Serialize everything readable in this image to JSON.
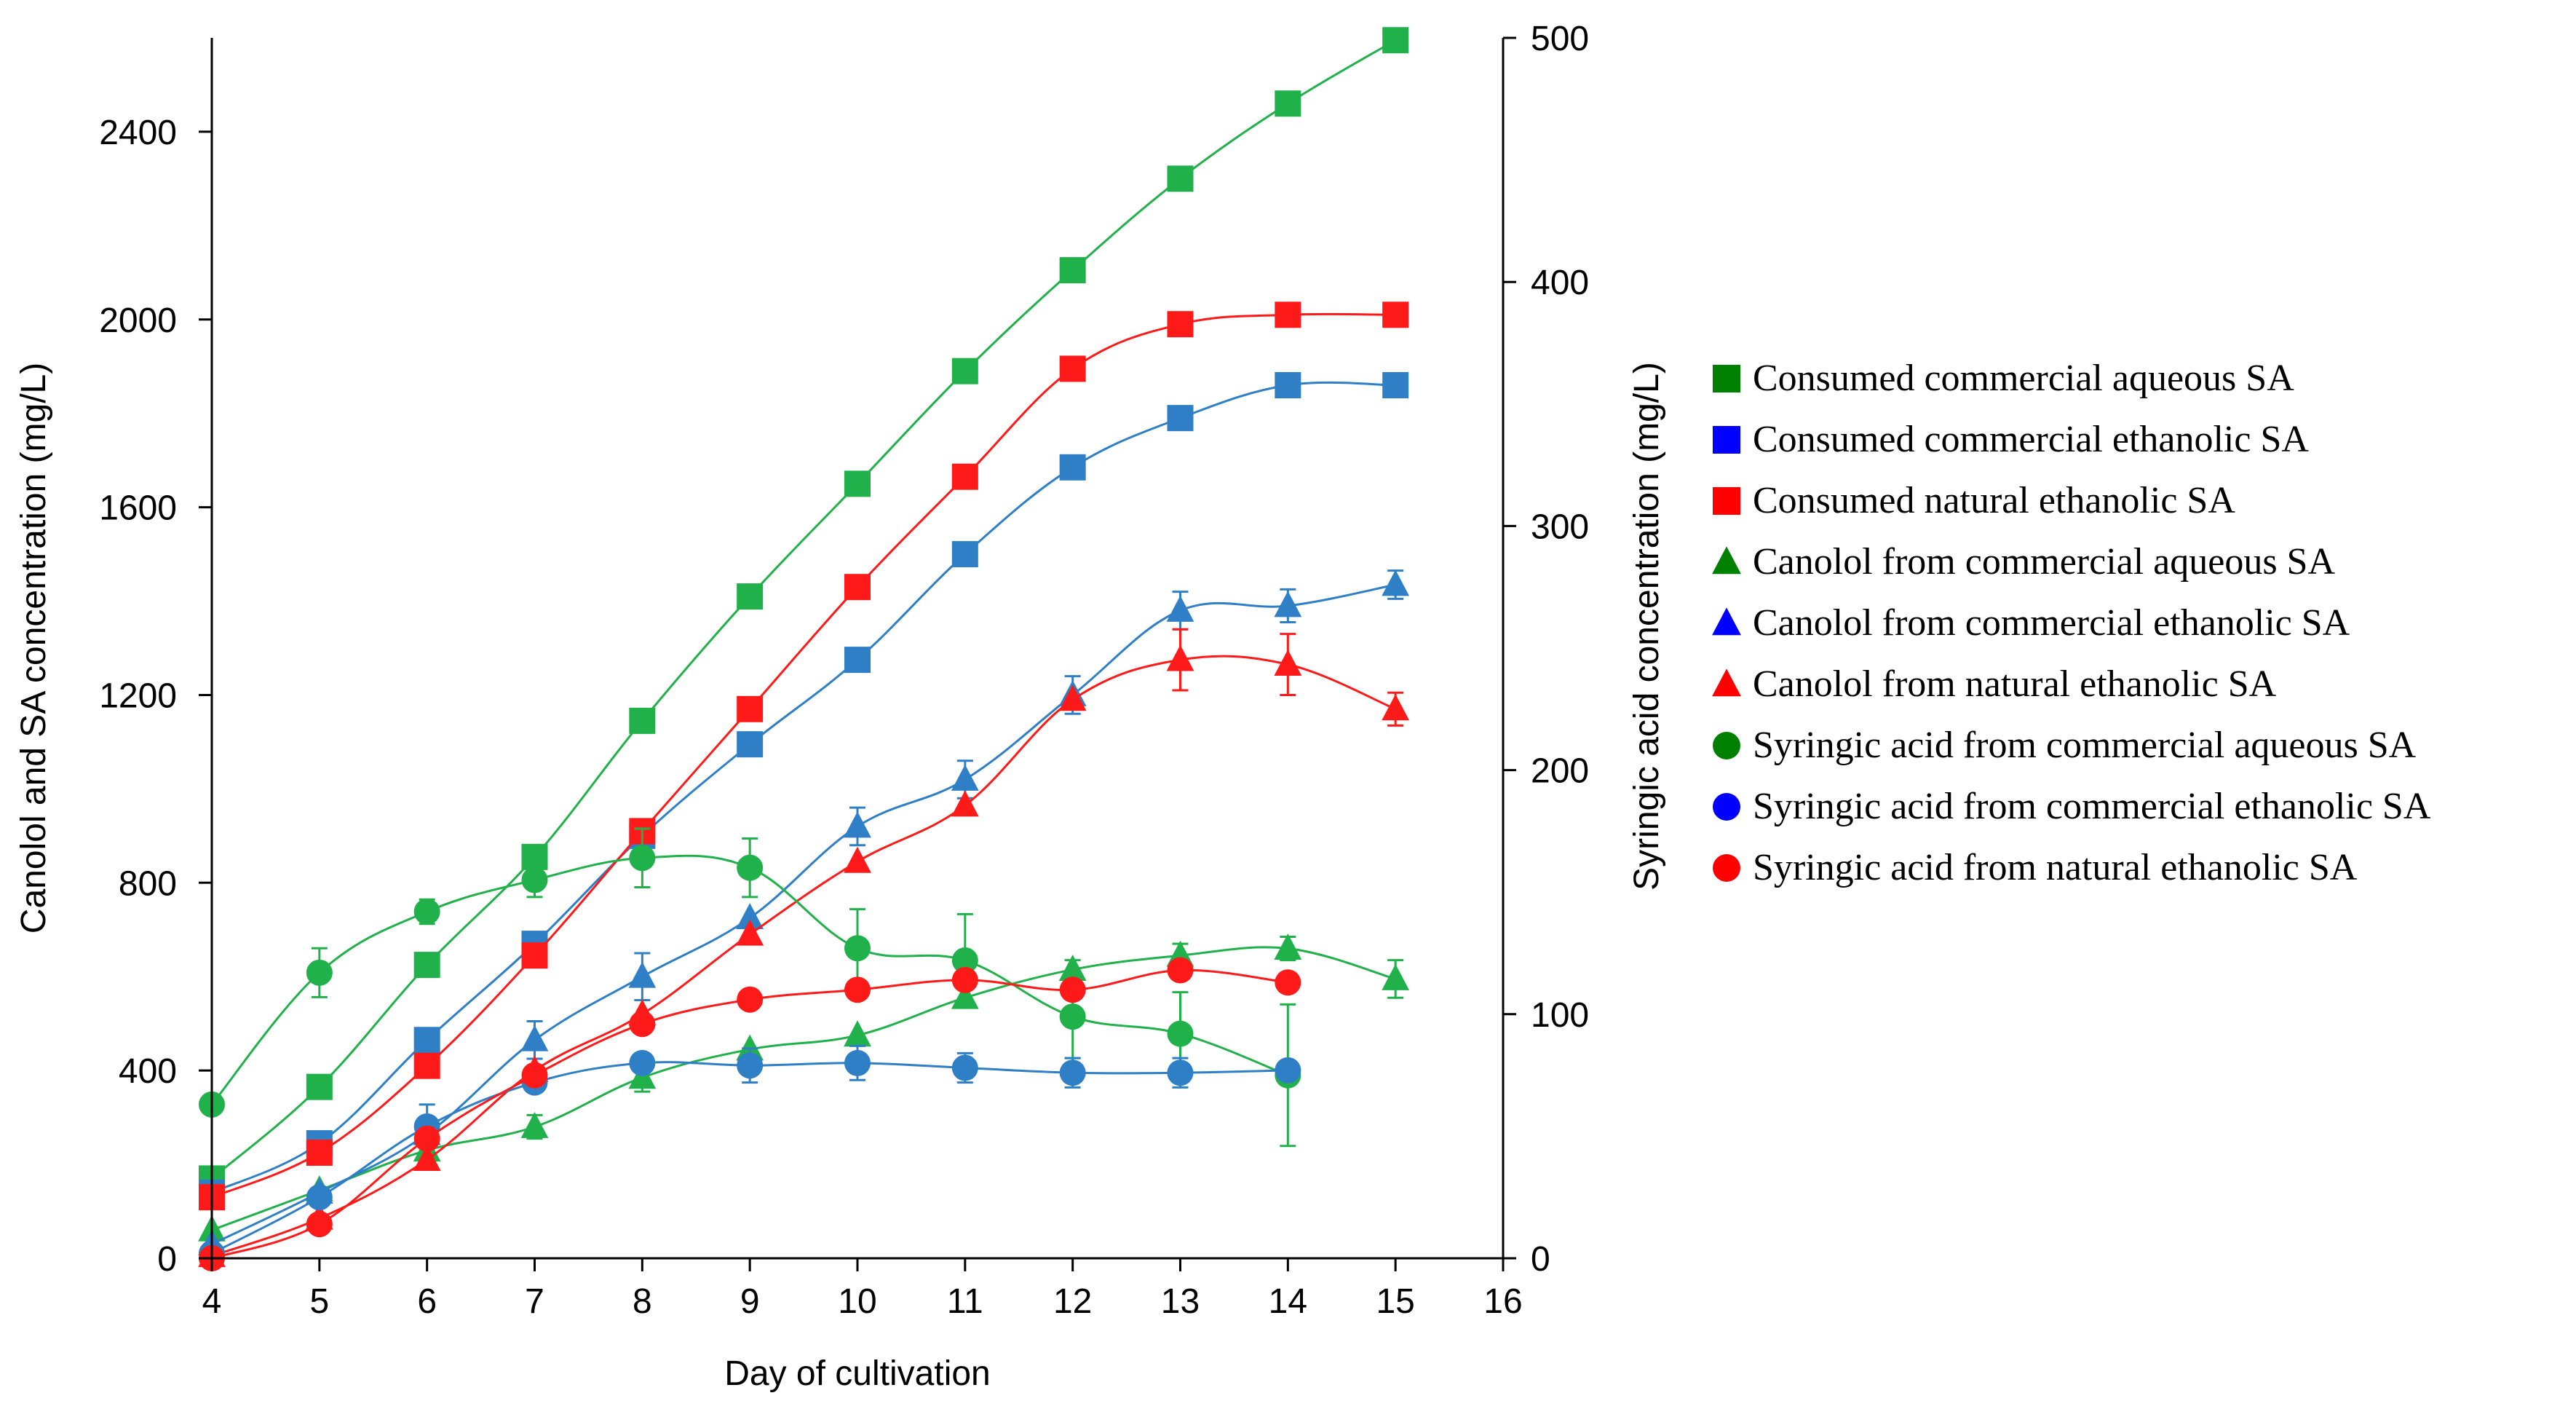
{
  "chart_data": {
    "type": "line",
    "title": "",
    "xlabel": "Day of cultivation",
    "ylabel_left": "Canolol and SA concentration  (mg/L)",
    "ylabel_right": "Syringic acid concentration  (mg/L)",
    "xlim": [
      4,
      16
    ],
    "ylim_left": [
      0,
      2600
    ],
    "ylim_right": [
      0,
      500
    ],
    "x_ticks": [
      "4",
      "5",
      "6",
      "7",
      "8",
      "9",
      "10",
      "11",
      "12",
      "13",
      "14",
      "15",
      "16"
    ],
    "y_left_ticks": [
      "0",
      "400",
      "800",
      "1200",
      "1600",
      "2000",
      "2400"
    ],
    "y_right_ticks": [
      "0",
      "100",
      "200",
      "300",
      "400",
      "500"
    ],
    "grid": false,
    "legend_position": "right",
    "colors": {
      "green": "#21b14b",
      "blue": "#2f7fc7",
      "red": "#ff1a1a",
      "legend_green": "#008000",
      "legend_blue": "#0000ff",
      "legend_red": "#ff0000"
    },
    "series": [
      {
        "name": "Consumed commercial aqueous SA",
        "marker": "square",
        "color": "green",
        "legend_color": "legend_green",
        "axis": "left",
        "x": [
          4,
          5,
          6,
          7,
          8,
          9,
          10,
          11,
          12,
          13,
          14,
          15
        ],
        "values": [
          170,
          365,
          625,
          855,
          1145,
          1410,
          1650,
          1890,
          2105,
          2300,
          2460,
          2595
        ],
        "errors": [
          0,
          0,
          0,
          0,
          0,
          0,
          0,
          0,
          0,
          0,
          0,
          0
        ]
      },
      {
        "name": "Consumed commercial ethanolic SA",
        "marker": "square",
        "color": "blue",
        "legend_color": "legend_blue",
        "axis": "left",
        "x": [
          4,
          5,
          6,
          7,
          8,
          9,
          10,
          11,
          12,
          13,
          14,
          15
        ],
        "values": [
          140,
          245,
          465,
          670,
          900,
          1095,
          1275,
          1500,
          1685,
          1790,
          1860,
          1860
        ],
        "errors": [
          0,
          0,
          0,
          0,
          0,
          0,
          0,
          0,
          0,
          0,
          0,
          0
        ]
      },
      {
        "name": "Consumed natural ethanolic SA",
        "marker": "square",
        "color": "red",
        "legend_color": "legend_red",
        "axis": "left",
        "x": [
          4,
          5,
          6,
          7,
          8,
          9,
          10,
          11,
          12,
          13,
          14,
          15
        ],
        "values": [
          130,
          225,
          410,
          645,
          910,
          1170,
          1430,
          1665,
          1895,
          1990,
          2010,
          2010
        ],
        "errors": [
          0,
          0,
          0,
          0,
          0,
          0,
          0,
          0,
          0,
          0,
          0,
          0
        ]
      },
      {
        "name": "Canolol from commercial aqueous SA",
        "marker": "triangle",
        "color": "green",
        "legend_color": "legend_green",
        "axis": "left",
        "x": [
          4,
          5,
          6,
          7,
          8,
          9,
          10,
          11,
          12,
          13,
          14,
          15
        ],
        "values": [
          60,
          145,
          230,
          280,
          385,
          445,
          475,
          555,
          615,
          645,
          660,
          595
        ],
        "errors": [
          0,
          0,
          0,
          25,
          30,
          0,
          0,
          0,
          20,
          25,
          25,
          40
        ]
      },
      {
        "name": "Canolol from commercial ethanolic SA",
        "marker": "triangle",
        "color": "blue",
        "legend_color": "legend_blue",
        "axis": "left",
        "x": [
          4,
          5,
          6,
          7,
          8,
          9,
          10,
          11,
          12,
          13,
          14,
          15
        ],
        "values": [
          30,
          140,
          265,
          465,
          600,
          725,
          920,
          1020,
          1200,
          1380,
          1390,
          1435
        ],
        "errors": [
          0,
          0,
          0,
          40,
          50,
          0,
          40,
          40,
          40,
          40,
          35,
          30
        ]
      },
      {
        "name": "Canolol from natural ethanolic SA",
        "marker": "triangle",
        "color": "red",
        "legend_color": "legend_red",
        "axis": "left",
        "x": [
          4,
          5,
          6,
          7,
          8,
          9,
          10,
          11,
          12,
          13,
          14,
          15
        ],
        "values": [
          5,
          85,
          210,
          400,
          520,
          690,
          845,
          965,
          1190,
          1275,
          1265,
          1170
        ],
        "errors": [
          0,
          0,
          0,
          0,
          0,
          0,
          0,
          0,
          0,
          65,
          65,
          35
        ]
      },
      {
        "name": "Syringic acid from commercial aqueous SA",
        "marker": "circle",
        "color": "green",
        "legend_color": "legend_green",
        "axis": "right",
        "x": [
          4,
          5,
          6,
          7,
          8,
          9,
          10,
          11,
          12,
          13,
          14
        ],
        "values": [
          63,
          117,
          142,
          155,
          164,
          160,
          127,
          122,
          99,
          92,
          75
        ],
        "errors": [
          0,
          10,
          5,
          7,
          12,
          12,
          16,
          19,
          17,
          17,
          29
        ]
      },
      {
        "name": "Syringic acid from commercial ethanolic SA",
        "marker": "circle",
        "color": "blue",
        "legend_color": "legend_blue",
        "axis": "right",
        "x": [
          4,
          5,
          6,
          7,
          8,
          9,
          10,
          11,
          12,
          13,
          14
        ],
        "values": [
          2,
          25,
          54,
          72,
          80,
          79,
          80,
          78,
          76,
          76,
          77
        ],
        "errors": [
          0,
          0,
          9,
          0,
          0,
          7,
          7,
          6,
          6,
          6,
          0
        ]
      },
      {
        "name": "Syringic acid from natural ethanolic SA",
        "marker": "circle",
        "color": "red",
        "legend_color": "legend_red",
        "axis": "right",
        "x": [
          4,
          5,
          6,
          7,
          8,
          9,
          10,
          11,
          12,
          13,
          14
        ],
        "values": [
          0,
          14,
          49,
          75,
          96,
          106,
          110,
          114,
          110,
          118,
          113
        ],
        "errors": [
          0,
          0,
          0,
          0,
          0,
          0,
          0,
          0,
          0,
          0,
          0
        ]
      }
    ]
  }
}
